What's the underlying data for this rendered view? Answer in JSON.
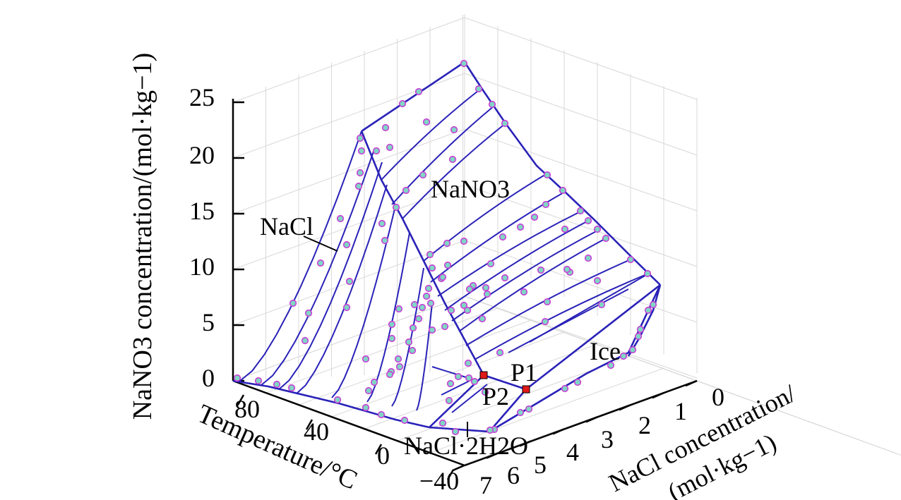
{
  "chart_data": {
    "type": "scatter",
    "style": "3d-phase-diagram",
    "axes": {
      "z": {
        "label": "NaNO3 concentration/(mol·kg−1)",
        "ticks": [
          "0",
          "5",
          "10",
          "15",
          "20",
          "25"
        ],
        "range": [
          0,
          25
        ]
      },
      "temperature": {
        "label": "Temperature/°C",
        "ticks": [
          "80",
          "40",
          "0",
          "−40"
        ],
        "range": [
          -40,
          100
        ]
      },
      "nacl": {
        "label_line1": "NaCl concentration/",
        "label_line2": "(mol·kg−1)",
        "ticks": [
          "0",
          "1",
          "2",
          "3",
          "4",
          "5",
          "6",
          "7"
        ],
        "range": [
          0,
          7
        ]
      }
    },
    "regions": [
      "NaNO3",
      "NaCl",
      "Ice",
      "NaCl·2H2O"
    ],
    "points": [
      "P1",
      "P2"
    ],
    "colors": {
      "curve": "#2a22b8",
      "marker_fill": "#7fd6c4",
      "marker_edge": "#c93fd6",
      "special_point": "#e01818",
      "grid": "#d8d8d8"
    },
    "grid": true
  }
}
